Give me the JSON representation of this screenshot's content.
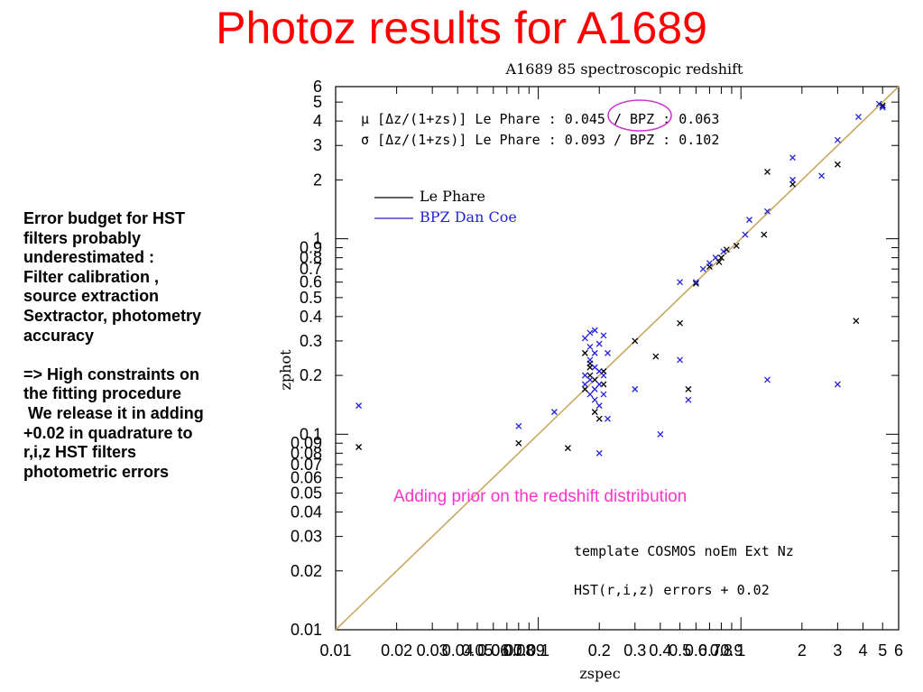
{
  "slide": {
    "title": "Photoz results for A1689",
    "side_text": [
      "Error budget for HST",
      "filters probably",
      "underestimated :",
      "Filter calibration ,",
      "source extraction",
      "Sextractor, photometry",
      "accuracy",
      "",
      "=> High constraints on",
      "the fitting procedure",
      " We release it in adding",
      "+0.02 in quadrature to",
      "r,i,z HST filters",
      "photometric errors"
    ],
    "prior_note": "Adding  prior on the redshift distribution",
    "colors": {
      "title": "#ff0000",
      "prior_note": "#ff33cc",
      "circle": "#cc33cc",
      "one_to_one": "#c8a860",
      "lephare": "#000000",
      "bpz": "#2222dd"
    }
  },
  "chart_data": {
    "type": "scatter",
    "title": "A1689 85 spectroscopic redshift",
    "xlabel": "zspec",
    "ylabel": "zphot",
    "xscale": "log",
    "yscale": "log",
    "xlim": [
      0.01,
      6
    ],
    "ylim": [
      0.01,
      6
    ],
    "x_ticks": [
      "0.01",
      "0.02",
      "0.03",
      "0.04",
      "0.05",
      "0.06",
      "0.07",
      "0.08",
      "0.09",
      "0.1",
      "0.2",
      "0.3",
      "0.4",
      "0.5",
      "0.6",
      "0.7",
      "0.8",
      "0.9",
      "1",
      "2",
      "3",
      "4",
      "5",
      "6"
    ],
    "x_tick_values": [
      0.01,
      0.02,
      0.03,
      0.04,
      0.05,
      0.06,
      0.07,
      0.08,
      0.09,
      0.1,
      0.2,
      0.3,
      0.4,
      0.5,
      0.6,
      0.7,
      0.8,
      0.9,
      1,
      2,
      3,
      4,
      5,
      6
    ],
    "y_ticks": [
      "0.01",
      "0.02",
      "0.03",
      "0.04",
      "0.05",
      "0.06",
      "0.07",
      "0.08",
      "0.09",
      "0.1",
      "0.2",
      "0.3",
      "0.4",
      "0.5",
      "0.6",
      "0.7",
      "0.8",
      "0.9",
      "1",
      "2",
      "3",
      "4",
      "5",
      "6"
    ],
    "y_tick_values": [
      0.01,
      0.02,
      0.03,
      0.04,
      0.05,
      0.06,
      0.07,
      0.08,
      0.09,
      0.1,
      0.2,
      0.3,
      0.4,
      0.5,
      0.6,
      0.7,
      0.8,
      0.9,
      1,
      2,
      3,
      4,
      5,
      6
    ],
    "stats": [
      "μ [Δz/(1+zs)] Le Phare : 0.045 / BPZ : 0.063",
      "σ [Δz/(1+zs)] Le Phare : 0.093 / BPZ : 0.102"
    ],
    "highlighted_value": "0.045",
    "legend": [
      {
        "name": "Le Phare",
        "color": "#000000"
      },
      {
        "name": "BPZ Dan Coe",
        "color": "#2222dd"
      }
    ],
    "annotations": [
      "template COSMOS noEm Ext Nz",
      "HST(r,i,z) errors + 0.02"
    ],
    "one_to_one_line": true,
    "series": [
      {
        "name": "Le Phare",
        "color": "#000000",
        "points": [
          [
            0.013,
            0.086
          ],
          [
            0.08,
            0.09
          ],
          [
            0.14,
            0.085
          ],
          [
            0.17,
            0.17
          ],
          [
            0.18,
            0.2
          ],
          [
            0.18,
            0.22
          ],
          [
            0.19,
            0.13
          ],
          [
            0.19,
            0.19
          ],
          [
            0.2,
            0.12
          ],
          [
            0.21,
            0.18
          ],
          [
            0.21,
            0.21
          ],
          [
            0.17,
            0.26
          ],
          [
            0.18,
            0.23
          ],
          [
            0.3,
            0.3
          ],
          [
            0.38,
            0.25
          ],
          [
            0.5,
            0.37
          ],
          [
            0.55,
            0.17
          ],
          [
            0.6,
            0.59
          ],
          [
            0.7,
            0.72
          ],
          [
            0.78,
            0.76
          ],
          [
            0.8,
            0.8
          ],
          [
            0.85,
            0.88
          ],
          [
            0.95,
            0.92
          ],
          [
            1.3,
            1.05
          ],
          [
            1.35,
            2.2
          ],
          [
            1.8,
            1.9
          ],
          [
            3,
            2.4
          ],
          [
            3.7,
            0.38
          ],
          [
            5,
            4.8
          ]
        ]
      },
      {
        "name": "BPZ Dan Coe",
        "color": "#2222dd",
        "points": [
          [
            0.013,
            0.14
          ],
          [
            0.08,
            0.11
          ],
          [
            0.12,
            0.13
          ],
          [
            0.17,
            0.31
          ],
          [
            0.17,
            0.2
          ],
          [
            0.17,
            0.18
          ],
          [
            0.18,
            0.33
          ],
          [
            0.18,
            0.28
          ],
          [
            0.18,
            0.24
          ],
          [
            0.18,
            0.19
          ],
          [
            0.18,
            0.16
          ],
          [
            0.19,
            0.34
          ],
          [
            0.19,
            0.26
          ],
          [
            0.19,
            0.22
          ],
          [
            0.19,
            0.17
          ],
          [
            0.19,
            0.15
          ],
          [
            0.2,
            0.29
          ],
          [
            0.2,
            0.21
          ],
          [
            0.2,
            0.18
          ],
          [
            0.2,
            0.14
          ],
          [
            0.2,
            0.08
          ],
          [
            0.21,
            0.32
          ],
          [
            0.21,
            0.2
          ],
          [
            0.21,
            0.16
          ],
          [
            0.22,
            0.12
          ],
          [
            0.22,
            0.26
          ],
          [
            0.3,
            0.17
          ],
          [
            0.4,
            0.1
          ],
          [
            0.5,
            0.24
          ],
          [
            0.55,
            0.15
          ],
          [
            0.5,
            0.6
          ],
          [
            0.6,
            0.6
          ],
          [
            0.65,
            0.7
          ],
          [
            0.7,
            0.75
          ],
          [
            0.75,
            0.8
          ],
          [
            0.82,
            0.86
          ],
          [
            1.05,
            1.05
          ],
          [
            1.1,
            1.25
          ],
          [
            1.35,
            1.38
          ],
          [
            1.35,
            0.19
          ],
          [
            1.8,
            2.0
          ],
          [
            1.8,
            2.6
          ],
          [
            2.5,
            2.1
          ],
          [
            3,
            3.2
          ],
          [
            3,
            0.18
          ],
          [
            3.8,
            4.2
          ],
          [
            4.8,
            4.9
          ],
          [
            5,
            4.7
          ]
        ]
      }
    ]
  }
}
